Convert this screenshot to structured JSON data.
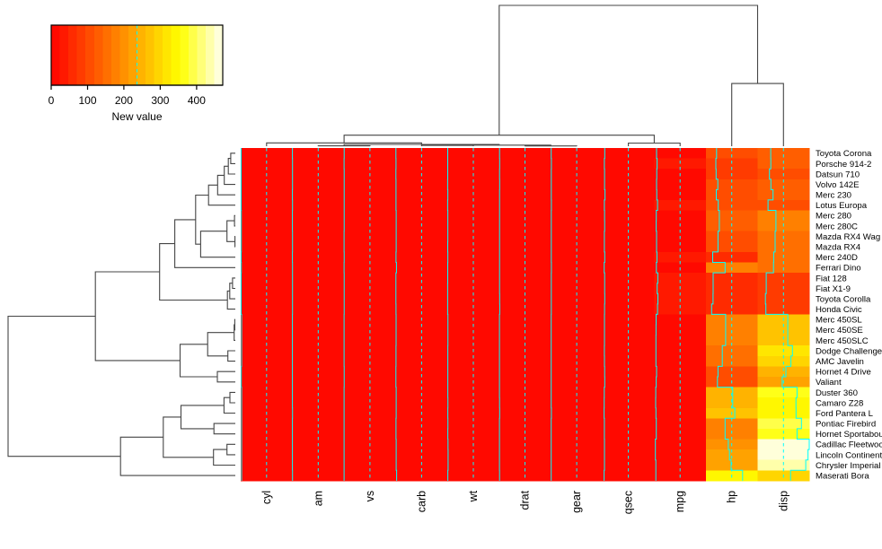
{
  "figure": {
    "title": "",
    "kind": "clustered heatmap with row and column dendrograms"
  },
  "chart_data": {
    "type": "heatmap",
    "title": "",
    "rows": [
      "Toyota Corona",
      "Porsche 914-2",
      "Datsun 710",
      "Volvo 142E",
      "Merc 230",
      "Lotus Europa",
      "Merc 280",
      "Merc 280C",
      "Mazda RX4 Wag",
      "Mazda RX4",
      "Merc 240D",
      "Ferrari Dino",
      "Fiat 128",
      "Fiat X1-9",
      "Toyota Corolla",
      "Honda Civic",
      "Merc 450SL",
      "Merc 450SE",
      "Merc 450SLC",
      "Dodge Challenger",
      "AMC Javelin",
      "Hornet 4 Drive",
      "Valiant",
      "Duster 360",
      "Camaro Z28",
      "Ford Pantera L",
      "Pontiac Firebird",
      "Hornet Sportabout",
      "Cadillac Fleetwood",
      "Lincoln Continental",
      "Chrysler Imperial",
      "Maserati Bora"
    ],
    "columns": [
      "cyl",
      "am",
      "vs",
      "carb",
      "wt",
      "drat",
      "gear",
      "qsec",
      "mpg",
      "hp",
      "disp"
    ],
    "matrix": [
      [
        4,
        0,
        1,
        1,
        2.465,
        3.7,
        3,
        20.01,
        21.5,
        97,
        120.1
      ],
      [
        4,
        1,
        0,
        2,
        2.14,
        4.43,
        5,
        16.7,
        26,
        91,
        120.3
      ],
      [
        4,
        1,
        1,
        1,
        2.32,
        3.85,
        4,
        18.61,
        22.8,
        93,
        108
      ],
      [
        4,
        1,
        1,
        2,
        1.78,
        4.11,
        4,
        18.6,
        21.4,
        109,
        121
      ],
      [
        4,
        0,
        1,
        2,
        3.15,
        3.92,
        4,
        22.9,
        22.8,
        95,
        140.8
      ],
      [
        4,
        1,
        1,
        2,
        1.513,
        3.77,
        5,
        16.9,
        30.4,
        113,
        95.1
      ],
      [
        6,
        0,
        1,
        4,
        3.44,
        3.92,
        4,
        18.3,
        19.2,
        123,
        167.6
      ],
      [
        6,
        0,
        1,
        4,
        3.44,
        3.92,
        4,
        18.9,
        17.8,
        123,
        167.6
      ],
      [
        6,
        1,
        0,
        4,
        2.875,
        3.9,
        4,
        17.02,
        21,
        110,
        160
      ],
      [
        6,
        1,
        0,
        4,
        2.62,
        3.9,
        4,
        16.46,
        21,
        110,
        160
      ],
      [
        4,
        0,
        1,
        2,
        3.19,
        3.69,
        4,
        20,
        24.4,
        62,
        146.7
      ],
      [
        6,
        1,
        0,
        6,
        2.77,
        3.62,
        5,
        15.5,
        19.7,
        175,
        145
      ],
      [
        4,
        1,
        1,
        1,
        2.2,
        4.08,
        4,
        19.47,
        32.4,
        66,
        78.7
      ],
      [
        4,
        1,
        1,
        1,
        1.935,
        4.08,
        4,
        18.9,
        27.3,
        66,
        79
      ],
      [
        4,
        1,
        1,
        1,
        1.835,
        4.22,
        4,
        19.9,
        33.9,
        65,
        71.1
      ],
      [
        4,
        1,
        1,
        2,
        1.615,
        4.93,
        4,
        18.52,
        30.4,
        52,
        75.7
      ],
      [
        8,
        0,
        0,
        3,
        3.73,
        3.07,
        3,
        17.6,
        17.3,
        180,
        275.8
      ],
      [
        8,
        0,
        0,
        3,
        4.07,
        3.07,
        3,
        17.4,
        16.4,
        180,
        275.8
      ],
      [
        8,
        0,
        0,
        3,
        3.78,
        3.07,
        3,
        18,
        15.2,
        180,
        275.8
      ],
      [
        8,
        0,
        0,
        2,
        3.52,
        2.76,
        3,
        16.87,
        15.5,
        150,
        318
      ],
      [
        8,
        0,
        0,
        2,
        3.435,
        3.15,
        3,
        17.3,
        15.2,
        150,
        304
      ],
      [
        6,
        0,
        1,
        1,
        3.215,
        3.08,
        3,
        19.44,
        21.4,
        110,
        258
      ],
      [
        6,
        0,
        1,
        1,
        3.46,
        2.76,
        3,
        20.22,
        18.1,
        105,
        225
      ],
      [
        8,
        0,
        0,
        4,
        3.57,
        3.21,
        3,
        15.84,
        14.3,
        245,
        360
      ],
      [
        8,
        0,
        0,
        4,
        3.84,
        3.73,
        3,
        15.41,
        13.3,
        245,
        350
      ],
      [
        8,
        1,
        0,
        4,
        3.17,
        4.22,
        5,
        14.5,
        15.8,
        264,
        351
      ],
      [
        8,
        0,
        0,
        2,
        3.845,
        3.08,
        3,
        17.05,
        19.2,
        175,
        400
      ],
      [
        8,
        0,
        0,
        2,
        3.44,
        3.15,
        3,
        17.02,
        18.7,
        175,
        360
      ],
      [
        8,
        0,
        0,
        4,
        5.25,
        2.93,
        3,
        17.98,
        10.4,
        205,
        472
      ],
      [
        8,
        0,
        0,
        4,
        5.424,
        3,
        3,
        17.82,
        10.4,
        215,
        460
      ],
      [
        8,
        0,
        0,
        4,
        5.345,
        3.23,
        3,
        17.42,
        14.7,
        230,
        440
      ],
      [
        8,
        1,
        0,
        8,
        3.57,
        3.54,
        3,
        14.6,
        15,
        335,
        301
      ]
    ],
    "color_scale": {
      "min": 0,
      "max": 472,
      "steps": 20,
      "ticks": [
        0,
        100,
        200,
        300,
        400
      ],
      "label": "New value",
      "palette": "heat (red-yellow-white)"
    },
    "trace": {
      "color": "#00ffff",
      "center_value": 236
    },
    "dendrograms": {
      "rows": "hierarchical clustering, complete linkage, euclidean",
      "columns": "hierarchical clustering, complete linkage, euclidean",
      "color": "#454545"
    },
    "layout": {
      "legend_position": "top-left",
      "row_labels_position": "right",
      "column_labels_position": "bottom",
      "grid": false
    }
  }
}
